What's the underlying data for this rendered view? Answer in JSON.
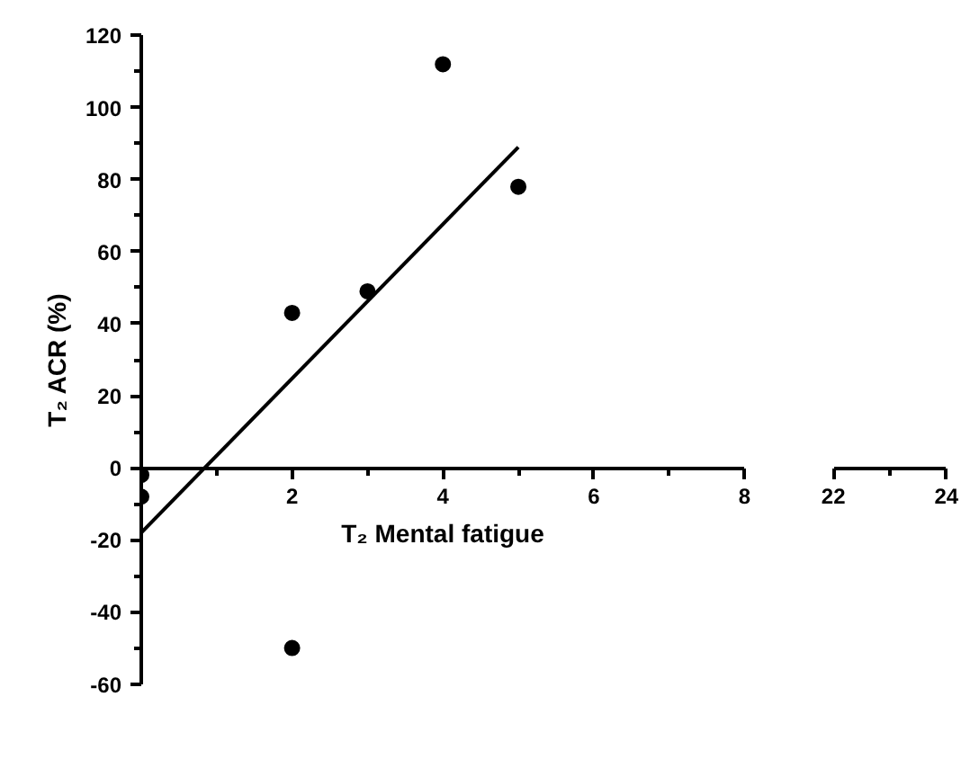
{
  "chart_data": [
    {
      "type": "scatter",
      "xlabel": "T₂ Mental fatigue",
      "ylabel": "T₂ ACR (%)",
      "xlim": [
        0,
        8
      ],
      "xticks": [
        {
          "value": 0,
          "label": null
        },
        2,
        4,
        6,
        8
      ],
      "ylim": [
        -60,
        120
      ],
      "yticks": [
        -60,
        -40,
        -20,
        0,
        20,
        40,
        60,
        80,
        100,
        120
      ],
      "marker": "circle",
      "grid": false,
      "series": [
        {
          "color": "#000000",
          "x": [
            0,
            0,
            2,
            2,
            3,
            4,
            5
          ],
          "values": [
            -2,
            -8,
            43,
            -50,
            49,
            112,
            78
          ]
        },
        {
          "type": "line",
          "marker": "none",
          "color": "#000000",
          "x": [
            0,
            5
          ],
          "values": [
            -18,
            89
          ]
        }
      ]
    },
    {
      "type": "scatter",
      "xlim": [
        22,
        24
      ],
      "xticks": [
        22,
        24
      ],
      "ylim": [
        -60,
        120
      ],
      "tick_labels": "x",
      "grid": false
    }
  ]
}
